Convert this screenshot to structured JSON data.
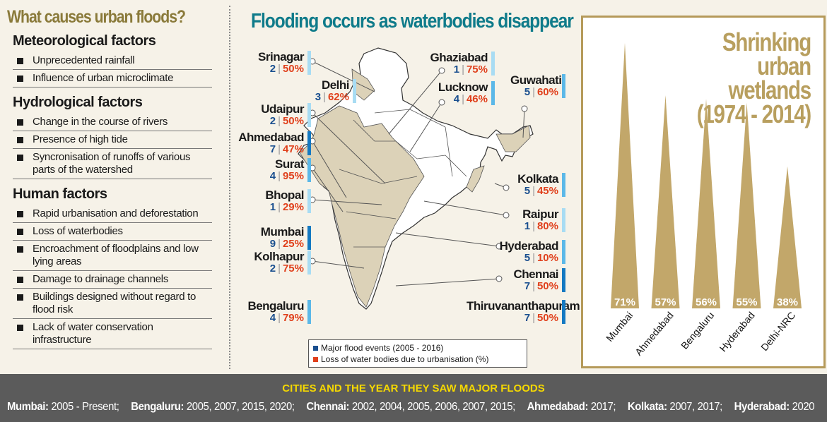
{
  "left": {
    "title": "What causes urban floods?",
    "sections": [
      {
        "heading": "Meteorological factors",
        "items": [
          "Unprecedented rainfall",
          "Influence of urban microclimate"
        ]
      },
      {
        "heading": "Hydrological factors",
        "items": [
          "Change in the course of rivers",
          "Presence of high tide",
          "Syncronisation of runoffs of various parts of the watershed"
        ]
      },
      {
        "heading": "Human factors",
        "items": [
          "Rapid urbanisation and deforestation",
          "Loss of waterbodies",
          "Encroachment of floodplains and low lying areas",
          "Damage to drainage channels",
          "Buildings designed without regard to flood risk",
          "Lack of water conservation infrastructure"
        ]
      }
    ]
  },
  "map": {
    "title": "Flooding occurs as waterbodies disappear",
    "cities": [
      {
        "name": "Srinagar",
        "events": "2",
        "loss": "50%"
      },
      {
        "name": "Delhi",
        "events": "3",
        "loss": "62%"
      },
      {
        "name": "Udaipur",
        "events": "2",
        "loss": "50%"
      },
      {
        "name": "Ahmedabad",
        "events": "7",
        "loss": "47%"
      },
      {
        "name": "Surat",
        "events": "4",
        "loss": "95%"
      },
      {
        "name": "Bhopal",
        "events": "1",
        "loss": "29%"
      },
      {
        "name": "Mumbai",
        "events": "9",
        "loss": "25%"
      },
      {
        "name": "Kolhapur",
        "events": "2",
        "loss": "75%"
      },
      {
        "name": "Bengaluru",
        "events": "4",
        "loss": "79%"
      },
      {
        "name": "Ghaziabad",
        "events": "1",
        "loss": "75%"
      },
      {
        "name": "Lucknow",
        "events": "4",
        "loss": "46%"
      },
      {
        "name": "Guwahati",
        "events": "5",
        "loss": "60%"
      },
      {
        "name": "Kolkata",
        "events": "5",
        "loss": "45%"
      },
      {
        "name": "Raipur",
        "events": "1",
        "loss": "80%"
      },
      {
        "name": "Hyderabad",
        "events": "5",
        "loss": "10%"
      },
      {
        "name": "Chennai",
        "events": "7",
        "loss": "50%"
      },
      {
        "name": "Thiruvananthapuram",
        "events": "7",
        "loss": "50%"
      }
    ],
    "legend": {
      "events": "Major flood events (2005 - 2016)",
      "loss": "Loss of water bodies due to urbanisation (%)"
    },
    "colors": {
      "events": "#1a4f8f",
      "loss": "#e0401c",
      "map_fill": "#dcd2b8"
    }
  },
  "chart_data": {
    "type": "bar",
    "title": "Shrinking urban wetlands",
    "subtitle": "(1974 - 2014)",
    "categories": [
      "Mumbai",
      "Ahmedabad",
      "Bengaluru",
      "Hyderabad",
      "Delhi-NRC"
    ],
    "values": [
      71,
      57,
      56,
      55,
      38
    ],
    "labels": [
      "71%",
      "57%",
      "56%",
      "55%",
      "38%"
    ],
    "mark": "triangle",
    "color": "#c2a76a"
  },
  "bottom": {
    "title": "CITIES AND THE YEAR THEY SAW MAJOR FLOODS",
    "entries": [
      {
        "city": "Mumbai:",
        "years": "2005 - Present;"
      },
      {
        "city": "Bengaluru:",
        "years": "2005, 2007, 2015, 2020;"
      },
      {
        "city": "Chennai:",
        "years": "2002, 2004, 2005, 2006, 2007, 2015;"
      },
      {
        "city": "Ahmedabad:",
        "years": "2017;"
      },
      {
        "city": "Kolkata:",
        "years": "2007, 2017;"
      },
      {
        "city": "Hyderabad:",
        "years": "2020"
      }
    ]
  }
}
